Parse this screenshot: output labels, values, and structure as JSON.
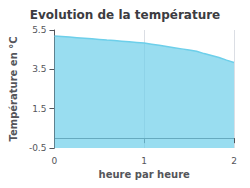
{
  "chart_data": {
    "type": "area",
    "title": "Evolution de la température",
    "xlabel": "heure par heure",
    "ylabel": "Température en °C",
    "x": [
      0,
      0.083,
      0.167,
      0.25,
      0.333,
      0.417,
      0.5,
      0.583,
      0.667,
      0.75,
      0.833,
      0.917,
      1.0,
      1.083,
      1.167,
      1.25,
      1.333,
      1.417,
      1.5,
      1.583,
      1.667,
      1.75,
      1.833,
      1.917,
      2.0
    ],
    "values": [
      5.2,
      5.17,
      5.14,
      5.11,
      5.08,
      5.05,
      5.02,
      4.99,
      4.96,
      4.93,
      4.9,
      4.87,
      4.84,
      4.78,
      4.72,
      4.66,
      4.6,
      4.54,
      4.48,
      4.42,
      4.3,
      4.2,
      4.1,
      3.97,
      3.85
    ],
    "color": "#6dcfea",
    "xlim": [
      0,
      2
    ],
    "xticks": [
      0,
      1,
      2
    ],
    "ylim": [
      -0.5,
      5.5
    ],
    "yticks": [
      -0.5,
      1.5,
      3.5,
      5.5
    ],
    "grid": "x"
  }
}
